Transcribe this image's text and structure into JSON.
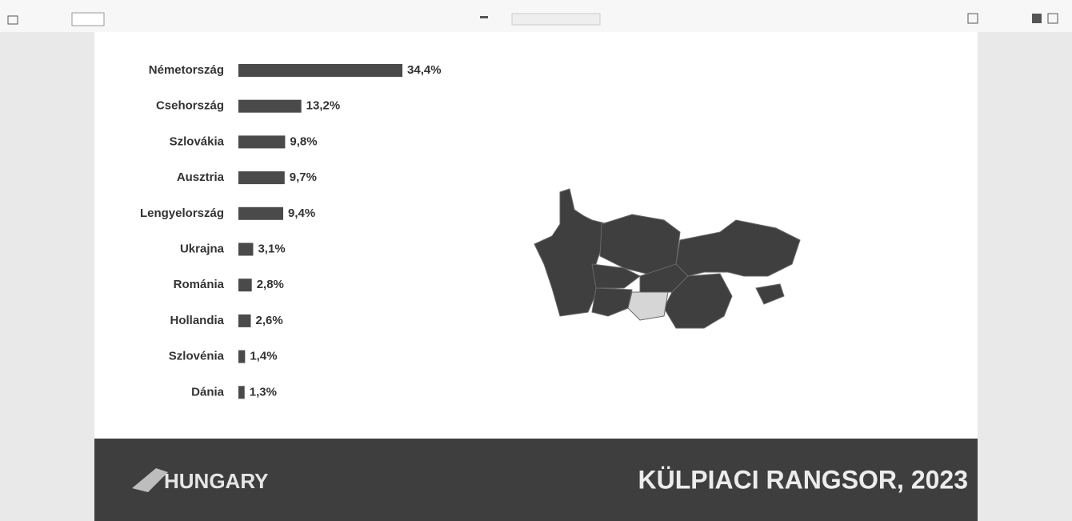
{
  "logo": "HUNGARY",
  "chart_data": {
    "type": "bar",
    "orientation": "horizontal",
    "title": "KÜLPIACI RANGSOR, 2023",
    "categories": [
      "Németország",
      "Csehország",
      "Szlovákia",
      "Ausztria",
      "Lengyelország",
      "Ukrajna",
      "Románia",
      "Hollandia",
      "Szlovénia",
      "Dánia"
    ],
    "values": [
      34.4,
      13.2,
      9.8,
      9.7,
      9.4,
      3.1,
      2.8,
      2.6,
      1.4,
      1.3
    ],
    "value_labels": [
      "34,4%",
      "13,2%",
      "9,8%",
      "9,7%",
      "9,4%",
      "3,1%",
      "2,8%",
      "2,6%",
      "1,4%",
      "1,3%"
    ],
    "color": "#4a4a4a"
  }
}
